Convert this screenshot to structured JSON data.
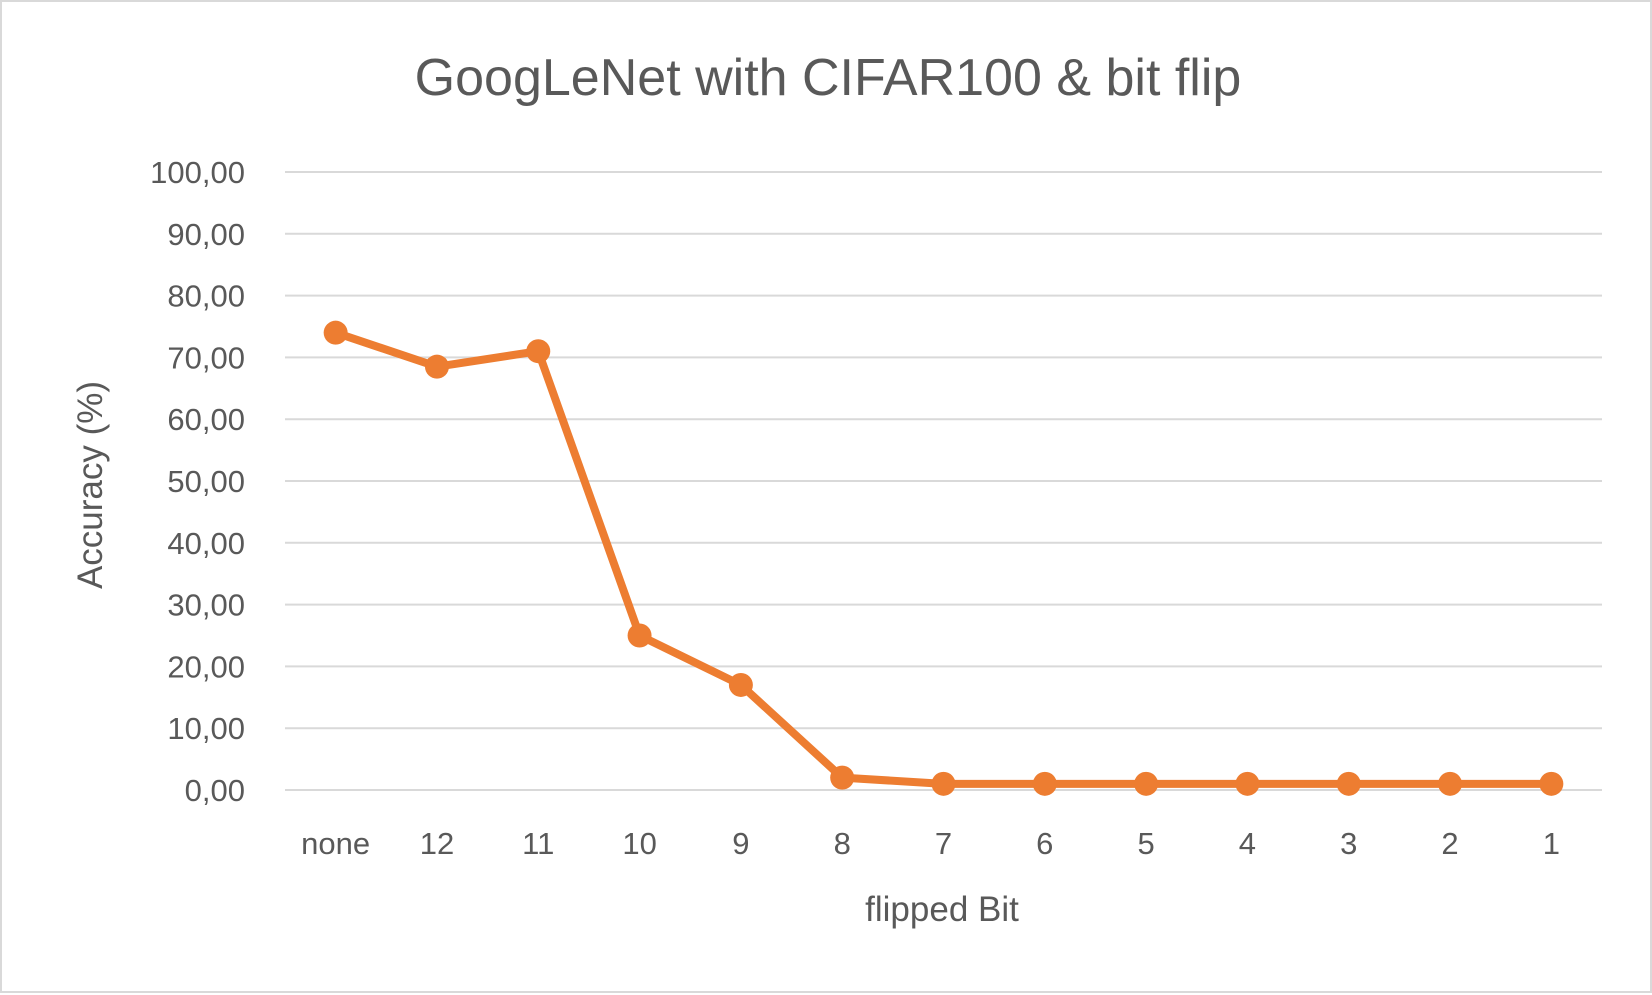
{
  "chart_data": {
    "type": "line",
    "title": "GoogLeNet with CIFAR100 & bit flip",
    "xlabel": "flipped Bit",
    "ylabel": "Accuracy (%)",
    "categories": [
      "none",
      "12",
      "11",
      "10",
      "9",
      "8",
      "7",
      "6",
      "5",
      "4",
      "3",
      "2",
      "1"
    ],
    "series": [
      {
        "values": [
          74.0,
          68.5,
          71.0,
          25.0,
          17.0,
          2.0,
          1.0,
          1.0,
          1.0,
          1.0,
          1.0,
          1.0,
          1.0
        ],
        "color": "#ed7d31"
      }
    ],
    "ylim": [
      0,
      100
    ],
    "yticks": [
      "0,00",
      "10,00",
      "20,00",
      "30,00",
      "40,00",
      "50,00",
      "60,00",
      "70,00",
      "80,00",
      "90,00",
      "100,00"
    ],
    "grid": true,
    "legend": "none"
  }
}
